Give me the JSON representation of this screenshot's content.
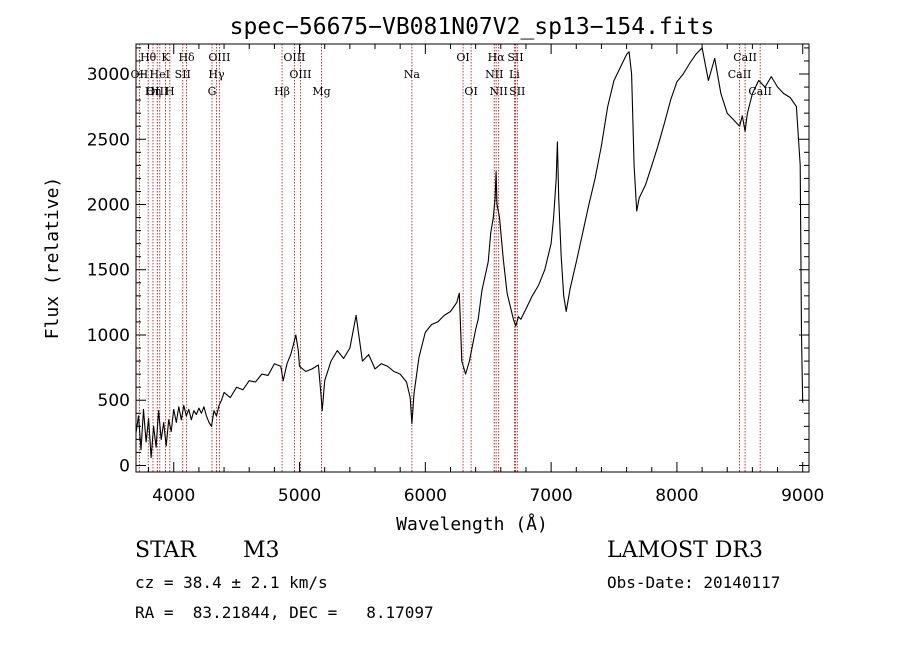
{
  "chart_data": {
    "type": "line",
    "title": "spec−56675−VB081N07V2_sp13−154.fits",
    "xlabel": "Wavelength (Å)",
    "ylabel": "Flux (relative)",
    "xlim": [
      3700,
      9050
    ],
    "ylim": [
      -50,
      3230
    ],
    "xticks": [
      4000,
      5000,
      6000,
      7000,
      8000,
      9000
    ],
    "yticks": [
      0,
      500,
      1000,
      1500,
      2000,
      2500,
      3000
    ],
    "grid": false,
    "lines": [
      {
        "label": "Hθ",
        "x": 3797,
        "row": 1
      },
      {
        "label": "K",
        "x": 3934,
        "row": 1
      },
      {
        "label": "Hδ",
        "x": 4102,
        "row": 1
      },
      {
        "label": "OIII",
        "x": 4363,
        "row": 1
      },
      {
        "label": "OIII",
        "x": 4959,
        "row": 1
      },
      {
        "label": "OI",
        "x": 6300,
        "row": 1
      },
      {
        "label": "Hα",
        "x": 6563,
        "row": 1
      },
      {
        "label": "SII",
        "x": 6717,
        "row": 1
      },
      {
        "label": "CaII",
        "x": 8542,
        "row": 1
      },
      {
        "label": "OII",
        "x": 3727,
        "row": 2
      },
      {
        "label": "HeI",
        "x": 3889,
        "row": 2
      },
      {
        "label": "SII",
        "x": 4072,
        "row": 2
      },
      {
        "label": "Hγ",
        "x": 4340,
        "row": 2
      },
      {
        "label": "OIII",
        "x": 5007,
        "row": 2
      },
      {
        "label": "Na",
        "x": 5893,
        "row": 2
      },
      {
        "label": "NII",
        "x": 6548,
        "row": 2
      },
      {
        "label": "Li",
        "x": 6708,
        "row": 2
      },
      {
        "label": "CaII",
        "x": 8498,
        "row": 2
      },
      {
        "label": "OIII",
        "x": 3869,
        "row": 3
      },
      {
        "label": "Hη",
        "x": 3835,
        "row": 3
      },
      {
        "label": "H",
        "x": 3969,
        "row": 3
      },
      {
        "label": "G",
        "x": 4304,
        "row": 3
      },
      {
        "label": "Hβ",
        "x": 4861,
        "row": 3
      },
      {
        "label": "Mg",
        "x": 5175,
        "row": 3
      },
      {
        "label": "OI",
        "x": 6364,
        "row": 3
      },
      {
        "label": "NII",
        "x": 6583,
        "row": 3
      },
      {
        "label": "SII",
        "x": 6731,
        "row": 3
      },
      {
        "label": "CaII",
        "x": 8662,
        "row": 3
      }
    ],
    "series": [
      {
        "name": "flux",
        "points": [
          [
            3700,
            250
          ],
          [
            3720,
            380
          ],
          [
            3740,
            120
          ],
          [
            3760,
            430
          ],
          [
            3780,
            180
          ],
          [
            3800,
            360
          ],
          [
            3820,
            60
          ],
          [
            3840,
            300
          ],
          [
            3860,
            140
          ],
          [
            3880,
            420
          ],
          [
            3900,
            200
          ],
          [
            3920,
            330
          ],
          [
            3940,
            150
          ],
          [
            3960,
            350
          ],
          [
            3980,
            260
          ],
          [
            4000,
            430
          ],
          [
            4020,
            330
          ],
          [
            4040,
            450
          ],
          [
            4060,
            350
          ],
          [
            4080,
            460
          ],
          [
            4100,
            380
          ],
          [
            4120,
            430
          ],
          [
            4140,
            350
          ],
          [
            4160,
            420
          ],
          [
            4180,
            390
          ],
          [
            4200,
            440
          ],
          [
            4220,
            400
          ],
          [
            4240,
            450
          ],
          [
            4260,
            380
          ],
          [
            4280,
            330
          ],
          [
            4300,
            300
          ],
          [
            4320,
            420
          ],
          [
            4340,
            380
          ],
          [
            4360,
            460
          ],
          [
            4380,
            500
          ],
          [
            4400,
            560
          ],
          [
            4450,
            520
          ],
          [
            4500,
            600
          ],
          [
            4550,
            580
          ],
          [
            4600,
            650
          ],
          [
            4650,
            640
          ],
          [
            4700,
            700
          ],
          [
            4750,
            690
          ],
          [
            4800,
            780
          ],
          [
            4850,
            760
          ],
          [
            4870,
            650
          ],
          [
            4900,
            780
          ],
          [
            4930,
            850
          ],
          [
            4950,
            920
          ],
          [
            4970,
            1000
          ],
          [
            4990,
            880
          ],
          [
            5000,
            760
          ],
          [
            5050,
            720
          ],
          [
            5100,
            740
          ],
          [
            5150,
            770
          ],
          [
            5170,
            550
          ],
          [
            5180,
            420
          ],
          [
            5200,
            650
          ],
          [
            5250,
            800
          ],
          [
            5300,
            880
          ],
          [
            5350,
            820
          ],
          [
            5400,
            900
          ],
          [
            5450,
            1150
          ],
          [
            5500,
            800
          ],
          [
            5550,
            850
          ],
          [
            5600,
            740
          ],
          [
            5650,
            780
          ],
          [
            5700,
            760
          ],
          [
            5750,
            720
          ],
          [
            5800,
            700
          ],
          [
            5850,
            640
          ],
          [
            5880,
            520
          ],
          [
            5893,
            320
          ],
          [
            5910,
            550
          ],
          [
            5950,
            830
          ],
          [
            6000,
            1020
          ],
          [
            6050,
            1080
          ],
          [
            6100,
            1100
          ],
          [
            6150,
            1150
          ],
          [
            6200,
            1180
          ],
          [
            6250,
            1250
          ],
          [
            6270,
            1320
          ],
          [
            6290,
            800
          ],
          [
            6320,
            700
          ],
          [
            6350,
            800
          ],
          [
            6400,
            1040
          ],
          [
            6420,
            1120
          ],
          [
            6450,
            1340
          ],
          [
            6500,
            1560
          ],
          [
            6520,
            1780
          ],
          [
            6540,
            1900
          ],
          [
            6555,
            2050
          ],
          [
            6563,
            2250
          ],
          [
            6570,
            2000
          ],
          [
            6590,
            1900
          ],
          [
            6620,
            1580
          ],
          [
            6650,
            1320
          ],
          [
            6680,
            1200
          ],
          [
            6700,
            1120
          ],
          [
            6720,
            1070
          ],
          [
            6740,
            1140
          ],
          [
            6760,
            1120
          ],
          [
            6800,
            1200
          ],
          [
            6850,
            1300
          ],
          [
            6900,
            1380
          ],
          [
            6950,
            1500
          ],
          [
            7000,
            1700
          ],
          [
            7020,
            1900
          ],
          [
            7040,
            2200
          ],
          [
            7050,
            2480
          ],
          [
            7060,
            2050
          ],
          [
            7080,
            1600
          ],
          [
            7100,
            1300
          ],
          [
            7120,
            1180
          ],
          [
            7150,
            1350
          ],
          [
            7200,
            1560
          ],
          [
            7250,
            1780
          ],
          [
            7300,
            2000
          ],
          [
            7350,
            2200
          ],
          [
            7400,
            2450
          ],
          [
            7450,
            2750
          ],
          [
            7500,
            2950
          ],
          [
            7550,
            3050
          ],
          [
            7600,
            3150
          ],
          [
            7620,
            3170
          ],
          [
            7640,
            3000
          ],
          [
            7660,
            2300
          ],
          [
            7680,
            1950
          ],
          [
            7700,
            2050
          ],
          [
            7750,
            2150
          ],
          [
            7800,
            2300
          ],
          [
            7850,
            2450
          ],
          [
            7900,
            2620
          ],
          [
            7950,
            2800
          ],
          [
            8000,
            2940
          ],
          [
            8050,
            3000
          ],
          [
            8100,
            3080
          ],
          [
            8150,
            3150
          ],
          [
            8200,
            3200
          ],
          [
            8250,
            2950
          ],
          [
            8300,
            3120
          ],
          [
            8350,
            2850
          ],
          [
            8400,
            2700
          ],
          [
            8450,
            2650
          ],
          [
            8498,
            2600
          ],
          [
            8520,
            2680
          ],
          [
            8542,
            2560
          ],
          [
            8560,
            2700
          ],
          [
            8600,
            2850
          ],
          [
            8650,
            2950
          ],
          [
            8700,
            2900
          ],
          [
            8750,
            2980
          ],
          [
            8800,
            2900
          ],
          [
            8850,
            2850
          ],
          [
            8900,
            2820
          ],
          [
            8950,
            2750
          ],
          [
            8980,
            2300
          ],
          [
            8990,
            1000
          ],
          [
            9000,
            480
          ]
        ]
      }
    ]
  },
  "info": {
    "object_type": "STAR",
    "subclass": "M3",
    "survey": "LAMOST DR3",
    "cz": "cz = 38.4 ± 2.1 km/s",
    "obs_date": "Obs-Date: 20140117",
    "coords": "RA =  83.21844, DEC =   8.17097"
  },
  "colors": {
    "line_marker": "#b22222",
    "spectrum": "#000000",
    "axis": "#000000"
  }
}
